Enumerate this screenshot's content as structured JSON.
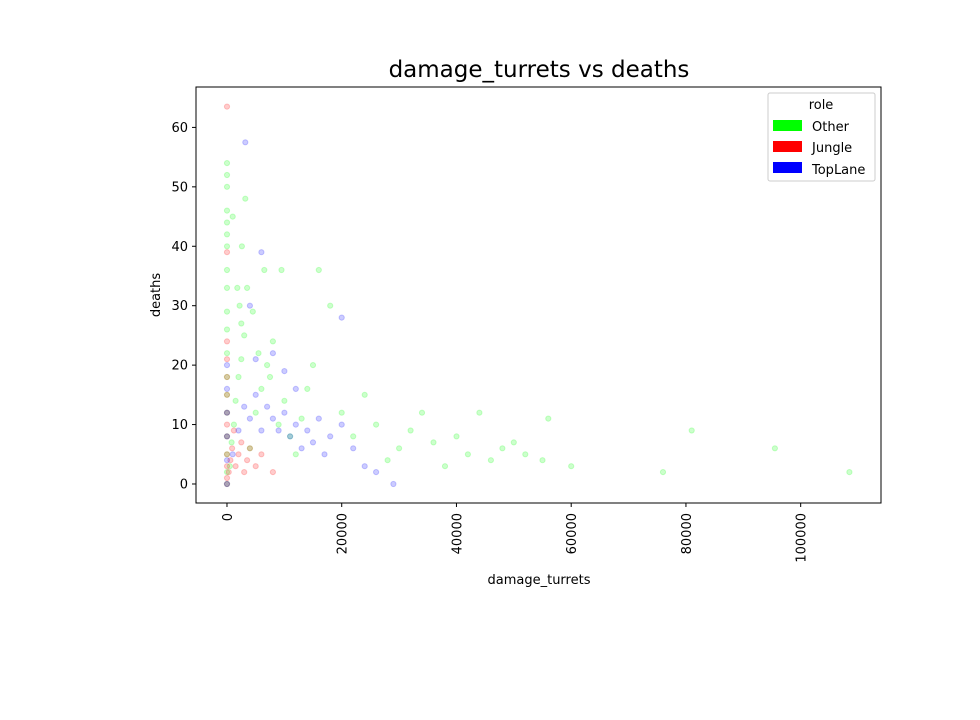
{
  "chart_data": {
    "type": "scatter",
    "title": "damage_turrets vs deaths",
    "xlabel": "damage_turrets",
    "ylabel": "deaths",
    "xlim": [
      -5400,
      114000
    ],
    "ylim": [
      -3.2,
      66.8
    ],
    "xticks": [
      0,
      20000,
      40000,
      60000,
      80000,
      100000
    ],
    "xtick_labels": [
      "0",
      "20000",
      "40000",
      "60000",
      "80000",
      "100000"
    ],
    "xtick_rotation": 90,
    "yticks": [
      0,
      10,
      20,
      30,
      40,
      50,
      60
    ],
    "ytick_labels": [
      "0",
      "10",
      "20",
      "30",
      "40",
      "50",
      "60"
    ],
    "grid": false,
    "point_alpha": 0.08,
    "legend": {
      "title": "role",
      "placement": "top-right",
      "entries": [
        {
          "label": "Other",
          "color": "#00ff00"
        },
        {
          "label": "Jungle",
          "color": "#ff0000"
        },
        {
          "label": "TopLane",
          "color": "#0000ff"
        }
      ]
    },
    "series": [
      {
        "name": "Other",
        "color": "#00ff00",
        "points": [
          [
            0,
            0
          ],
          [
            0,
            2
          ],
          [
            0,
            5
          ],
          [
            0,
            8
          ],
          [
            0,
            12
          ],
          [
            0,
            15
          ],
          [
            0,
            18
          ],
          [
            0,
            22
          ],
          [
            0,
            26
          ],
          [
            0,
            29
          ],
          [
            0,
            33
          ],
          [
            0,
            36
          ],
          [
            0,
            40
          ],
          [
            0,
            42
          ],
          [
            0,
            44
          ],
          [
            0,
            46
          ],
          [
            0,
            50
          ],
          [
            0,
            52
          ],
          [
            0,
            54
          ],
          [
            500,
            3
          ],
          [
            800,
            7
          ],
          [
            1200,
            10
          ],
          [
            1500,
            14
          ],
          [
            2000,
            18
          ],
          [
            2500,
            21
          ],
          [
            3000,
            25
          ],
          [
            2200,
            30
          ],
          [
            1800,
            33
          ],
          [
            2600,
            40
          ],
          [
            3200,
            48
          ],
          [
            1000,
            45
          ],
          [
            4000,
            6
          ],
          [
            5000,
            12
          ],
          [
            6000,
            16
          ],
          [
            7000,
            20
          ],
          [
            8000,
            24
          ],
          [
            9000,
            10
          ],
          [
            10000,
            14
          ],
          [
            11000,
            8
          ],
          [
            12000,
            5
          ],
          [
            13000,
            11
          ],
          [
            14000,
            16
          ],
          [
            15000,
            20
          ],
          [
            16000,
            36
          ],
          [
            18000,
            30
          ],
          [
            20000,
            12
          ],
          [
            22000,
            8
          ],
          [
            24000,
            15
          ],
          [
            26000,
            10
          ],
          [
            28000,
            4
          ],
          [
            30000,
            6
          ],
          [
            32000,
            9
          ],
          [
            34000,
            12
          ],
          [
            36000,
            7
          ],
          [
            38000,
            3
          ],
          [
            40000,
            8
          ],
          [
            42000,
            5
          ],
          [
            44000,
            12
          ],
          [
            46000,
            4
          ],
          [
            48000,
            6
          ],
          [
            50000,
            7
          ],
          [
            52000,
            5
          ],
          [
            55000,
            4
          ],
          [
            56000,
            11
          ],
          [
            60000,
            3
          ],
          [
            76000,
            2
          ],
          [
            81000,
            9
          ],
          [
            95500,
            6
          ],
          [
            108500,
            2
          ],
          [
            2500,
            27
          ],
          [
            3500,
            33
          ],
          [
            4500,
            29
          ],
          [
            6500,
            36
          ],
          [
            9500,
            36
          ],
          [
            5500,
            22
          ],
          [
            7500,
            18
          ]
        ]
      },
      {
        "name": "Jungle",
        "color": "#ff0000",
        "points": [
          [
            0,
            0
          ],
          [
            0,
            1
          ],
          [
            0,
            3
          ],
          [
            0,
            5
          ],
          [
            0,
            8
          ],
          [
            0,
            10
          ],
          [
            0,
            12
          ],
          [
            0,
            15
          ],
          [
            0,
            18
          ],
          [
            0,
            21
          ],
          [
            0,
            24
          ],
          [
            0,
            39
          ],
          [
            0,
            63.5
          ],
          [
            300,
            2
          ],
          [
            600,
            4
          ],
          [
            900,
            6
          ],
          [
            1200,
            9
          ],
          [
            1500,
            3
          ],
          [
            2000,
            5
          ],
          [
            2500,
            7
          ],
          [
            3000,
            2
          ],
          [
            3500,
            4
          ],
          [
            4000,
            6
          ],
          [
            5000,
            3
          ],
          [
            6000,
            5
          ],
          [
            8000,
            2
          ]
        ]
      },
      {
        "name": "TopLane",
        "color": "#0000ff",
        "points": [
          [
            0,
            0
          ],
          [
            0,
            4
          ],
          [
            0,
            8
          ],
          [
            0,
            12
          ],
          [
            0,
            16
          ],
          [
            0,
            20
          ],
          [
            1000,
            5
          ],
          [
            2000,
            9
          ],
          [
            3000,
            13
          ],
          [
            3200,
            57.5
          ],
          [
            4000,
            11
          ],
          [
            5000,
            15
          ],
          [
            6000,
            9
          ],
          [
            7000,
            13
          ],
          [
            8000,
            11
          ],
          [
            9000,
            9
          ],
          [
            10000,
            12
          ],
          [
            11000,
            8
          ],
          [
            12000,
            10
          ],
          [
            13000,
            6
          ],
          [
            14000,
            9
          ],
          [
            15000,
            7
          ],
          [
            16000,
            11
          ],
          [
            17000,
            5
          ],
          [
            18000,
            8
          ],
          [
            20000,
            10
          ],
          [
            20000,
            28
          ],
          [
            22000,
            6
          ],
          [
            24000,
            3
          ],
          [
            26000,
            2
          ],
          [
            29000,
            0
          ],
          [
            6000,
            39
          ],
          [
            8000,
            22
          ],
          [
            10000,
            19
          ],
          [
            12000,
            16
          ],
          [
            4000,
            30
          ],
          [
            5000,
            21
          ]
        ]
      }
    ]
  }
}
